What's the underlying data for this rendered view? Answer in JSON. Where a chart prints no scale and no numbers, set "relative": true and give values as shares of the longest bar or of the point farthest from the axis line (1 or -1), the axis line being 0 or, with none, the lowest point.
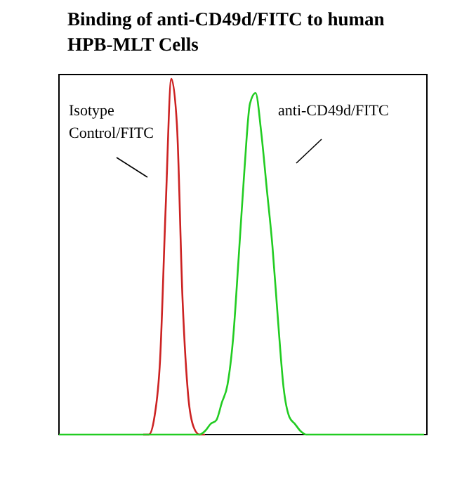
{
  "chart_data": {
    "type": "line",
    "title": "Binding of anti-CD49d/FITC to human HPB-MLT Cells",
    "relative": true,
    "categories": [
      null,
      null,
      null,
      null,
      null,
      null,
      null,
      null,
      null,
      null,
      null,
      null,
      null,
      null,
      null,
      null,
      null,
      null,
      null,
      null,
      null,
      null,
      null,
      null,
      null,
      null,
      null,
      null,
      null,
      null,
      null,
      null,
      null,
      null,
      null,
      null,
      null,
      null,
      null,
      null,
      null,
      null,
      null,
      null,
      null,
      null,
      null,
      null,
      null,
      null,
      null,
      null,
      null,
      null,
      null,
      null,
      null,
      null,
      null,
      null,
      null,
      null,
      null,
      null,
      null,
      null
    ],
    "series": [
      {
        "name": "Isotype Control/FITC",
        "color": "#cc2222",
        "values": [
          null,
          null,
          null,
          null,
          null,
          null,
          null,
          null,
          null,
          null,
          null,
          null,
          null,
          null,
          null,
          0,
          0,
          0.05,
          0.21,
          0.64,
          1,
          0.87,
          0.38,
          0.11,
          0.02,
          0,
          0,
          null,
          null,
          null,
          null,
          null,
          null,
          null,
          null,
          null,
          null,
          null,
          null,
          null,
          null,
          null,
          null,
          null,
          null,
          null,
          null,
          null,
          null,
          null,
          null,
          null,
          null,
          null,
          null,
          null,
          null,
          null,
          null,
          null,
          null,
          null,
          null,
          null,
          null,
          null
        ]
      },
      {
        "name": "anti-CD49d/FITC",
        "color": "#22cc22",
        "values": [
          0,
          0,
          0,
          0,
          0,
          0,
          0,
          0,
          0,
          0,
          0,
          0,
          0,
          0,
          0,
          0,
          0,
          0,
          0,
          0,
          0,
          0,
          0,
          0,
          0,
          0,
          0.01,
          0.03,
          0.04,
          0.09,
          0.14,
          0.27,
          0.5,
          0.74,
          0.93,
          0.96,
          0.85,
          0.69,
          0.53,
          0.32,
          0.13,
          0.05,
          0.03,
          0.01,
          0,
          0,
          0,
          0,
          0,
          0,
          0,
          0,
          0,
          0,
          0,
          0,
          0,
          0,
          0,
          0,
          0,
          0,
          0,
          0,
          0,
          0
        ]
      }
    ]
  }
}
